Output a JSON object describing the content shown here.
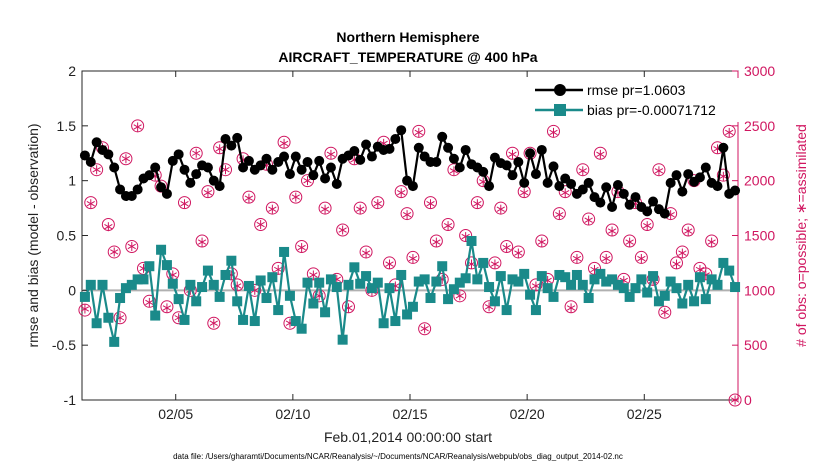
{
  "chart_data": {
    "type": "line",
    "title": "Northern Hemisphere",
    "subtitle": "AIRCRAFT_TEMPERATURE @ 400 hPa",
    "xlabel": "Feb.01,2014 00:00:00 start",
    "ylabel": "rmse and bias (model - observation)",
    "y2label": "# of obs: o=possible; ∗=assimilated",
    "footnote": "data file: /Users/gharamti/Documents/NCAR/Reanalysis/~/Documents/NCAR/Reanalysis/webpub/obs_diag_output_2014-02.nc",
    "xlim": [
      1,
      29
    ],
    "ylim": [
      -1,
      2
    ],
    "y2lim": [
      0,
      3000
    ],
    "x_ticks": [
      5,
      10,
      15,
      20,
      25
    ],
    "x_tick_labels": [
      "02/05",
      "02/10",
      "02/15",
      "02/20",
      "02/25"
    ],
    "y_ticks": [
      -1,
      -0.5,
      0,
      0.5,
      1,
      1.5,
      2
    ],
    "y_tick_labels": [
      "-1",
      "-0.5",
      "0",
      "0.5",
      "1",
      "1.5",
      "2"
    ],
    "y2_ticks": [
      0,
      500,
      1000,
      1500,
      2000,
      2500,
      3000
    ],
    "y2_tick_labels": [
      "0",
      "500",
      "1000",
      "1500",
      "2000",
      "2500",
      "3000"
    ],
    "zero_line": 0,
    "legend_position": "top-right",
    "x": [
      1.125,
      1.375,
      1.625,
      1.875,
      2.125,
      2.375,
      2.625,
      2.875,
      3.125,
      3.375,
      3.625,
      3.875,
      4.125,
      4.375,
      4.625,
      4.875,
      5.125,
      5.375,
      5.625,
      5.875,
      6.125,
      6.375,
      6.625,
      6.875,
      7.125,
      7.375,
      7.625,
      7.875,
      8.125,
      8.375,
      8.625,
      8.875,
      9.125,
      9.375,
      9.625,
      9.875,
      10.125,
      10.375,
      10.625,
      10.875,
      11.125,
      11.375,
      11.625,
      11.875,
      12.125,
      12.375,
      12.625,
      12.875,
      13.125,
      13.375,
      13.625,
      13.875,
      14.125,
      14.375,
      14.625,
      14.875,
      15.125,
      15.375,
      15.625,
      15.875,
      16.125,
      16.375,
      16.625,
      16.875,
      17.125,
      17.375,
      17.625,
      17.875,
      18.125,
      18.375,
      18.625,
      18.875,
      19.125,
      19.375,
      19.625,
      19.875,
      20.125,
      20.375,
      20.625,
      20.875,
      21.125,
      21.375,
      21.625,
      21.875,
      22.125,
      22.375,
      22.625,
      22.875,
      23.125,
      23.375,
      23.625,
      23.875,
      24.125,
      24.375,
      24.625,
      24.875,
      25.125,
      25.375,
      25.625,
      25.875,
      26.125,
      26.375,
      26.625,
      26.875,
      27.125,
      27.375,
      27.625,
      27.875,
      28.125,
      28.375,
      28.625,
      28.875
    ],
    "series": [
      {
        "name": "rmse pr=1.0603",
        "color": "#000000",
        "marker": "circle",
        "axis": "left",
        "values": [
          1.23,
          1.17,
          1.35,
          1.28,
          1.24,
          1.12,
          0.92,
          0.86,
          0.86,
          0.92,
          1.02,
          1.05,
          1.12,
          0.94,
          0.88,
          1.18,
          1.24,
          1.1,
          0.98,
          1.06,
          1.14,
          1.12,
          1.0,
          0.95,
          1.38,
          1.32,
          1.39,
          1.12,
          1.18,
          1.1,
          1.14,
          1.2,
          1.1,
          1.17,
          1.22,
          1.06,
          1.22,
          1.1,
          1.17,
          1.05,
          1.18,
          1.02,
          1.12,
          0.97,
          1.2,
          1.23,
          1.27,
          1.19,
          1.33,
          1.22,
          1.31,
          1.28,
          1.29,
          1.38,
          1.46,
          1.0,
          0.95,
          1.3,
          1.22,
          1.17,
          1.17,
          1.4,
          1.3,
          1.2,
          1.12,
          1.28,
          1.15,
          1.12,
          1.08,
          0.95,
          1.21,
          1.16,
          1.14,
          1.05,
          1.17,
          0.98,
          1.25,
          1.06,
          1.28,
          0.98,
          1.13,
          0.95,
          1.02,
          0.97,
          0.88,
          0.92,
          0.98,
          0.85,
          0.8,
          0.94,
          0.76,
          0.96,
          0.88,
          0.78,
          0.85,
          0.76,
          0.72,
          0.81,
          0.74,
          0.7,
          0.98,
          1.05,
          0.9,
          1.06,
          0.99,
          1.03,
          1.12,
          0.98,
          0.95,
          1.3,
          0.88,
          0.91
        ]
      },
      {
        "name": "bias pr=-0.00071712",
        "color": "#1a8a8a",
        "marker": "square",
        "axis": "left",
        "values": [
          -0.06,
          0.05,
          -0.3,
          0.05,
          -0.25,
          -0.47,
          -0.07,
          0.02,
          0.05,
          0.1,
          0.1,
          0.22,
          -0.23,
          0.37,
          0.23,
          0.06,
          -0.08,
          -0.27,
          0.05,
          -0.1,
          0.03,
          0.18,
          0.05,
          -0.06,
          0.14,
          0.27,
          -0.1,
          -0.27,
          0.04,
          -0.28,
          0.09,
          -0.07,
          0.12,
          -0.18,
          0.35,
          -0.05,
          -0.28,
          -0.35,
          0.07,
          -0.12,
          0.07,
          -0.2,
          0.1,
          0.03,
          -0.45,
          0.05,
          0.21,
          0.06,
          0.13,
          0.02,
          0.07,
          -0.3,
          0.02,
          -0.28,
          0.14,
          -0.22,
          -0.15,
          0.08,
          0.1,
          -0.07,
          0.08,
          0.22,
          -0.08,
          0.01,
          0.07,
          0.11,
          0.45,
          0.1,
          0.25,
          0.03,
          -0.1,
          0.13,
          -0.18,
          0.1,
          0.08,
          0.15,
          -0.04,
          -0.18,
          0.13,
          0.02,
          -0.06,
          0.14,
          0.12,
          0.05,
          0.14,
          0.05,
          -0.07,
          0.1,
          0.15,
          0.08,
          0.1,
          0.05,
          0.02,
          -0.06,
          0.02,
          0.1,
          -0.02,
          0.13,
          -0.1,
          -0.05,
          0.08,
          0.02,
          -0.12,
          0.05,
          -0.1,
          0.12,
          -0.08,
          0.1,
          0.05,
          0.25,
          0.18,
          0.03
        ]
      },
      {
        "name": "possible",
        "color": "#d01660",
        "marker": "open-circle",
        "axis": "right",
        "values": [
          820,
          1800,
          2100,
          2300,
          1600,
          1350,
          750,
          2200,
          1400,
          2500,
          1200,
          900,
          2050,
          1950,
          850,
          1150,
          750,
          1800,
          1000,
          2250,
          1450,
          1900,
          700,
          2300,
          2100,
          1150,
          1050,
          2200,
          1850,
          1000,
          1600,
          2150,
          1750,
          1200,
          2350,
          700,
          1850,
          1400,
          2000,
          1150,
          950,
          1750,
          2250,
          1100,
          1550,
          850,
          2200,
          1750,
          1350,
          1000,
          1800,
          2350,
          1250,
          1050,
          1900,
          1700,
          1300,
          2450,
          650,
          1800,
          1450,
          1100,
          1600,
          2100,
          950,
          1500,
          1250,
          1800,
          2000,
          850,
          1250,
          1750,
          1400,
          2250,
          1350,
          1900,
          2250,
          1050,
          1450,
          1100,
          2450,
          1700,
          1900,
          850,
          1300,
          2100,
          1650,
          1200,
          2250,
          1300,
          1550,
          1900,
          1100,
          1450,
          1800,
          1300,
          1600,
          1100,
          2100,
          800,
          1700,
          1250,
          1350,
          1550,
          2000,
          1200,
          1150,
          1450,
          2300,
          2050,
          2450,
          0
        ]
      },
      {
        "name": "assimilated",
        "color": "#d01660",
        "marker": "asterisk",
        "axis": "right",
        "values": [
          830,
          1790,
          2100,
          2300,
          1580,
          1350,
          750,
          2200,
          1400,
          2490,
          1200,
          890,
          2040,
          1950,
          840,
          1140,
          750,
          1790,
          1000,
          2250,
          1440,
          1890,
          700,
          2290,
          2100,
          1140,
          1040,
          2190,
          1840,
          1000,
          1600,
          2140,
          1740,
          1190,
          2340,
          700,
          1850,
          1390,
          2000,
          1140,
          950,
          1740,
          2240,
          1100,
          1550,
          840,
          2190,
          1740,
          1340,
          990,
          1790,
          2340,
          1240,
          1040,
          1890,
          1690,
          1290,
          2440,
          650,
          1790,
          1440,
          1100,
          1590,
          2090,
          950,
          1490,
          1240,
          1790,
          1990,
          850,
          1240,
          1740,
          1390,
          2240,
          1340,
          1890,
          2240,
          1040,
          1440,
          1090,
          2440,
          1690,
          1890,
          840,
          1290,
          2090,
          1640,
          1190,
          2240,
          1290,
          1540,
          1890,
          1090,
          1440,
          1790,
          1290,
          1590,
          1090,
          2090,
          800,
          1690,
          1240,
          1340,
          1540,
          1990,
          1190,
          1140,
          1440,
          2290,
          2040,
          2440,
          0
        ]
      }
    ]
  }
}
